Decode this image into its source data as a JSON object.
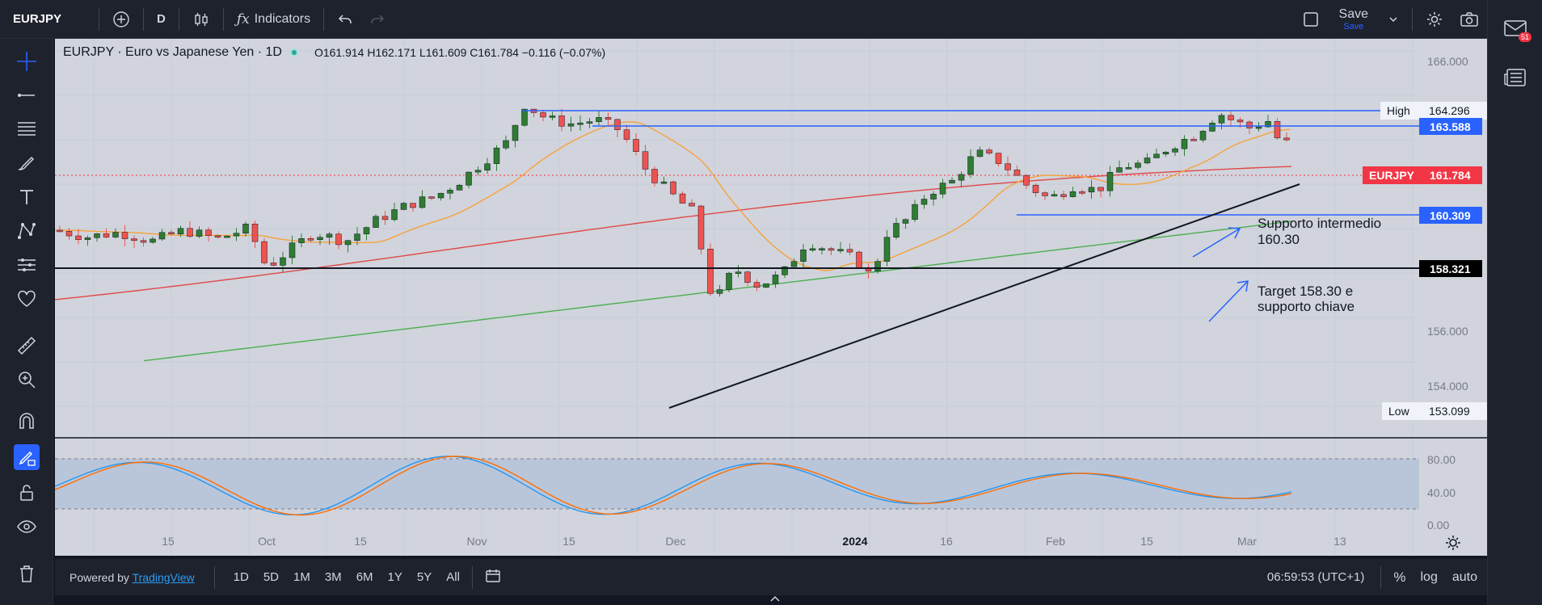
{
  "toolbar": {
    "symbol": "EURJPY",
    "interval": "D",
    "indicators": "Indicators",
    "save": "Save",
    "save_sub": "Save"
  },
  "notifications": {
    "count": "51"
  },
  "legend": {
    "title": "EURJPY · Euro vs Japanese Yen · 1D",
    "ohlc": "O161.914  H162.171  L161.609  C161.784  −0.116 (−0.07%)"
  },
  "price_axis": {
    "ticks": [
      "166.000",
      "156.000",
      "154.000"
    ],
    "high_label": "High",
    "high_value": "164.296",
    "low_label": "Low",
    "low_value": "153.099",
    "levels": [
      "163.588",
      "160.309",
      "158.321"
    ],
    "symbol_tag": "EURJPY",
    "current": "161.784"
  },
  "osc_axis": {
    "ticks": [
      "80.00",
      "40.00",
      "0.00"
    ]
  },
  "time_axis": {
    "ticks": [
      "15",
      "Oct",
      "15",
      "Nov",
      "15",
      "Dec",
      "2024",
      "16",
      "Feb",
      "15",
      "Mar",
      "13"
    ]
  },
  "annotations": {
    "a1_line1": "Supporto intermedio",
    "a1_line2": "160.30",
    "a2_line1": "Target 158.30 e",
    "a2_line2": "supporto chiave"
  },
  "bottom": {
    "powered": "Powered by ",
    "brand": "TradingView",
    "ranges": [
      "1D",
      "5D",
      "1M",
      "3M",
      "6M",
      "1Y",
      "5Y",
      "All"
    ],
    "clock": "06:59:53 (UTC+1)",
    "pct": "%",
    "log": "log",
    "auto": "auto"
  },
  "colors": {
    "bg": "#d1d4dc",
    "up": "#2e7d32",
    "down": "#ef5350",
    "blue": "#2962ff",
    "ema20": "#f7a23a",
    "ema100": "#e04848",
    "ema200": "#4caf50",
    "red_tag": "#f23645"
  }
}
